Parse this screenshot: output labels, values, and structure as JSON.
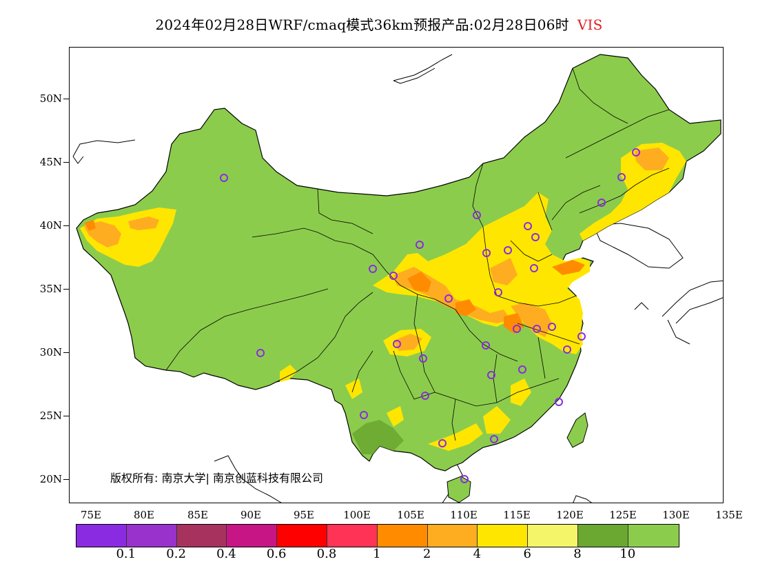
{
  "title": {
    "text": "2024年02月28日WRF/cmaq模式36km预报产品:02月28日06时",
    "variable": "VIS"
  },
  "axes": {
    "y_labels": [
      "50N",
      "45N",
      "40N",
      "35N",
      "30N",
      "25N",
      "20N"
    ],
    "x_labels": [
      "75E",
      "80E",
      "85E",
      "90E",
      "95E",
      "100E",
      "105E",
      "110E",
      "115E",
      "120E",
      "125E",
      "130E",
      "135E"
    ]
  },
  "copyright": "版权所有: 南京大学| 南京创蓝科技有限公司",
  "legend": {
    "colors": [
      "#8a2be2",
      "#9932cc",
      "#a8325e",
      "#c71585",
      "#ff0000",
      "#ff3355",
      "#ff8c00",
      "#ffad20",
      "#ffe600",
      "#f5f56a",
      "#6aa832",
      "#8ccc4c"
    ],
    "labels": [
      "0.1",
      "0.2",
      "0.4",
      "0.6",
      "0.8",
      "1",
      "2",
      "4",
      "6",
      "8",
      "10"
    ]
  },
  "colors": {
    "land_base": "#8ccc4c",
    "dark_green": "#6aa832",
    "light_yellow": "#f5f56a",
    "yellow": "#ffe600",
    "light_orange": "#ffad20",
    "orange": "#ff8c00",
    "station_ring": "#8a2be2"
  }
}
